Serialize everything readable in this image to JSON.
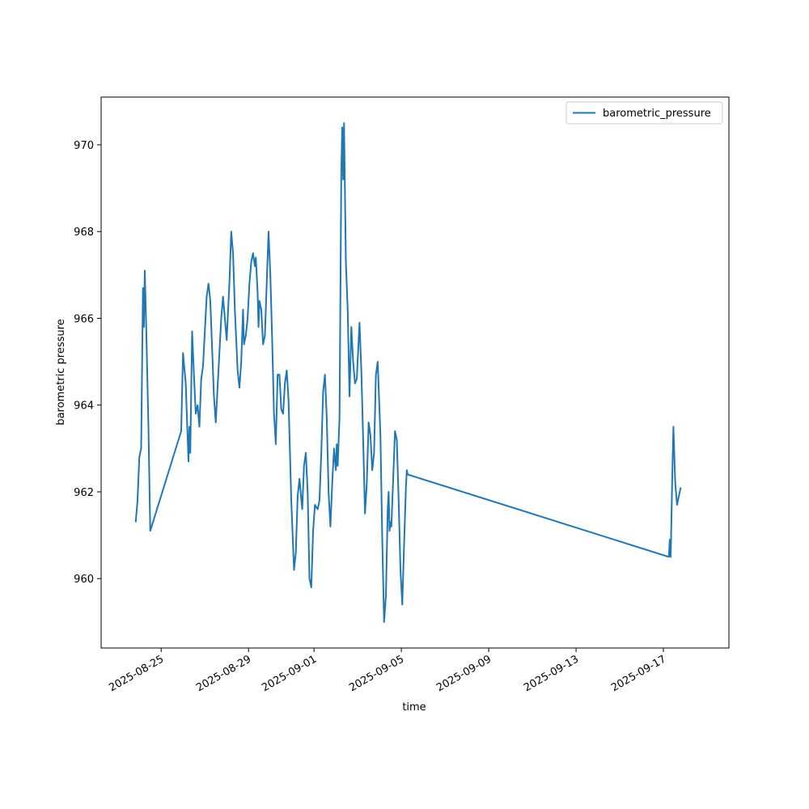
{
  "chart_data": {
    "type": "line",
    "title": "",
    "xlabel": "time",
    "ylabel": "barometric pressure",
    "x_tick_labels": [
      "2025-08-25",
      "2025-08-29",
      "2025-09-01",
      "2025-09-05",
      "2025-09-09",
      "2025-09-13",
      "2025-09-17"
    ],
    "y_tick_labels": [
      "960",
      "962",
      "964",
      "966",
      "968",
      "970"
    ],
    "xlim": [
      "2025-08-22T06:00",
      "2025-09-20T00:00"
    ],
    "ylim": [
      958.4,
      971.1
    ],
    "grid": false,
    "legend_position": "top-right",
    "series": [
      {
        "name": "barometric_pressure",
        "color": "#1f77b4",
        "points": [
          [
            "2025-08-23T20:00",
            961.3
          ],
          [
            "2025-08-23T22:00",
            961.8
          ],
          [
            "2025-08-24T00:00",
            962.8
          ],
          [
            "2025-08-24T02:00",
            963.0
          ],
          [
            "2025-08-24T04:00",
            966.7
          ],
          [
            "2025-08-24T05:00",
            965.8
          ],
          [
            "2025-08-24T06:00",
            967.1
          ],
          [
            "2025-08-24T08:00",
            965.4
          ],
          [
            "2025-08-24T10:00",
            963.5
          ],
          [
            "2025-08-24T12:00",
            961.1
          ],
          [
            "2025-08-25T22:00",
            963.4
          ],
          [
            "2025-08-26T00:00",
            965.2
          ],
          [
            "2025-08-26T03:00",
            964.5
          ],
          [
            "2025-08-26T06:00",
            962.7
          ],
          [
            "2025-08-26T07:00",
            963.5
          ],
          [
            "2025-08-26T08:00",
            962.9
          ],
          [
            "2025-08-26T10:00",
            965.7
          ],
          [
            "2025-08-26T12:00",
            964.7
          ],
          [
            "2025-08-26T14:00",
            963.8
          ],
          [
            "2025-08-26T16:00",
            964.0
          ],
          [
            "2025-08-26T18:00",
            963.5
          ],
          [
            "2025-08-26T20:00",
            964.6
          ],
          [
            "2025-08-26T22:00",
            964.9
          ],
          [
            "2025-08-27T02:00",
            966.5
          ],
          [
            "2025-08-27T04:00",
            966.8
          ],
          [
            "2025-08-27T06:00",
            966.4
          ],
          [
            "2025-08-27T10:00",
            964.2
          ],
          [
            "2025-08-27T12:00",
            963.6
          ],
          [
            "2025-08-27T18:00",
            966.0
          ],
          [
            "2025-08-27T20:00",
            966.5
          ],
          [
            "2025-08-28T00:00",
            965.5
          ],
          [
            "2025-08-28T03:00",
            966.8
          ],
          [
            "2025-08-28T05:00",
            968.0
          ],
          [
            "2025-08-28T07:00",
            967.5
          ],
          [
            "2025-08-28T09:00",
            966.2
          ],
          [
            "2025-08-28T12:00",
            964.8
          ],
          [
            "2025-08-28T14:00",
            964.4
          ],
          [
            "2025-08-28T16:00",
            965.0
          ],
          [
            "2025-08-28T18:00",
            966.2
          ],
          [
            "2025-08-28T19:00",
            965.4
          ],
          [
            "2025-08-28T21:00",
            965.6
          ],
          [
            "2025-08-28T23:00",
            966.0
          ],
          [
            "2025-08-29T01:00",
            966.8
          ],
          [
            "2025-08-29T03:00",
            967.3
          ],
          [
            "2025-08-29T05:00",
            967.5
          ],
          [
            "2025-08-29T07:00",
            967.2
          ],
          [
            "2025-08-29T08:00",
            967.4
          ],
          [
            "2025-08-29T10:00",
            966.6
          ],
          [
            "2025-08-29T11:00",
            965.8
          ],
          [
            "2025-08-29T12:00",
            966.4
          ],
          [
            "2025-08-29T14:00",
            966.2
          ],
          [
            "2025-08-29T16:00",
            965.4
          ],
          [
            "2025-08-29T18:00",
            965.6
          ],
          [
            "2025-08-29T20:00",
            966.8
          ],
          [
            "2025-08-29T22:00",
            968.0
          ],
          [
            "2025-08-30T00:00",
            967.0
          ],
          [
            "2025-08-30T02:00",
            965.5
          ],
          [
            "2025-08-30T04:00",
            963.8
          ],
          [
            "2025-08-30T06:00",
            963.1
          ],
          [
            "2025-08-30T08:00",
            964.7
          ],
          [
            "2025-08-30T10:00",
            964.7
          ],
          [
            "2025-08-30T12:00",
            963.9
          ],
          [
            "2025-08-30T14:00",
            963.8
          ],
          [
            "2025-08-30T16:00",
            964.5
          ],
          [
            "2025-08-30T18:00",
            964.8
          ],
          [
            "2025-08-30T20:00",
            964.1
          ],
          [
            "2025-08-30T23:00",
            961.8
          ],
          [
            "2025-08-31T02:00",
            960.2
          ],
          [
            "2025-08-31T04:00",
            960.6
          ],
          [
            "2025-08-31T06:00",
            961.9
          ],
          [
            "2025-08-31T08:00",
            962.3
          ],
          [
            "2025-08-31T11:00",
            961.6
          ],
          [
            "2025-08-31T13:00",
            962.6
          ],
          [
            "2025-08-31T15:00",
            962.9
          ],
          [
            "2025-08-31T17:00",
            962.0
          ],
          [
            "2025-08-31T19:00",
            960.0
          ],
          [
            "2025-08-31T21:00",
            959.8
          ],
          [
            "2025-08-31T23:00",
            961.1
          ],
          [
            "2025-09-01T01:00",
            961.7
          ],
          [
            "2025-09-01T04:00",
            961.6
          ],
          [
            "2025-09-01T06:00",
            961.8
          ],
          [
            "2025-09-01T08:00",
            962.9
          ],
          [
            "2025-09-01T10:00",
            964.3
          ],
          [
            "2025-09-01T12:00",
            964.7
          ],
          [
            "2025-09-01T14:00",
            963.7
          ],
          [
            "2025-09-01T16:00",
            962.0
          ],
          [
            "2025-09-01T18:00",
            961.2
          ],
          [
            "2025-09-01T20:00",
            962.2
          ],
          [
            "2025-09-01T22:00",
            963.0
          ],
          [
            "2025-09-02T00:00",
            962.5
          ],
          [
            "2025-09-02T01:00",
            963.1
          ],
          [
            "2025-09-02T02:00",
            962.6
          ],
          [
            "2025-09-02T04:00",
            963.7
          ],
          [
            "2025-09-02T06:00",
            969.4
          ],
          [
            "2025-09-02T07:00",
            970.4
          ],
          [
            "2025-09-02T08:00",
            969.2
          ],
          [
            "2025-09-02T09:00",
            970.5
          ],
          [
            "2025-09-02T11:00",
            967.3
          ],
          [
            "2025-09-02T13:00",
            966.2
          ],
          [
            "2025-09-02T15:00",
            964.2
          ],
          [
            "2025-09-02T17:00",
            965.8
          ],
          [
            "2025-09-02T19:00",
            965.0
          ],
          [
            "2025-09-02T21:00",
            964.5
          ],
          [
            "2025-09-02T23:00",
            964.6
          ],
          [
            "2025-09-03T02:00",
            965.9
          ],
          [
            "2025-09-03T04:00",
            964.8
          ],
          [
            "2025-09-03T06:00",
            963.2
          ],
          [
            "2025-09-03T08:00",
            961.5
          ],
          [
            "2025-09-03T10:00",
            962.2
          ],
          [
            "2025-09-03T12:00",
            963.6
          ],
          [
            "2025-09-03T14:00",
            963.3
          ],
          [
            "2025-09-03T16:00",
            962.5
          ],
          [
            "2025-09-03T18:00",
            962.9
          ],
          [
            "2025-09-03T20:00",
            964.7
          ],
          [
            "2025-09-03T22:00",
            965.0
          ],
          [
            "2025-09-04T01:00",
            963.3
          ],
          [
            "2025-09-04T03:00",
            960.9
          ],
          [
            "2025-09-04T05:00",
            959.0
          ],
          [
            "2025-09-04T07:00",
            959.6
          ],
          [
            "2025-09-04T09:00",
            961.6
          ],
          [
            "2025-09-04T10:00",
            962.0
          ],
          [
            "2025-09-04T11:00",
            961.1
          ],
          [
            "2025-09-04T12:00",
            961.3
          ],
          [
            "2025-09-04T13:00",
            961.2
          ],
          [
            "2025-09-04T15:00",
            962.3
          ],
          [
            "2025-09-04T17:00",
            963.4
          ],
          [
            "2025-09-04T19:00",
            963.2
          ],
          [
            "2025-09-04T21:00",
            961.8
          ],
          [
            "2025-09-04T23:00",
            960.2
          ],
          [
            "2025-09-05T01:00",
            959.4
          ],
          [
            "2025-09-05T03:00",
            960.8
          ],
          [
            "2025-09-05T05:00",
            962.1
          ],
          [
            "2025-09-05T06:00",
            962.5
          ],
          [
            "2025-09-05T07:00",
            962.4
          ],
          [
            "2025-09-17T06:00",
            960.5
          ],
          [
            "2025-09-17T07:00",
            960.9
          ],
          [
            "2025-09-17T08:00",
            960.5
          ],
          [
            "2025-09-17T10:00",
            962.6
          ],
          [
            "2025-09-17T11:00",
            963.5
          ],
          [
            "2025-09-17T13:00",
            962.2
          ],
          [
            "2025-09-17T15:00",
            961.7
          ],
          [
            "2025-09-17T17:00",
            961.9
          ],
          [
            "2025-09-17T19:00",
            962.1
          ]
        ]
      }
    ]
  }
}
